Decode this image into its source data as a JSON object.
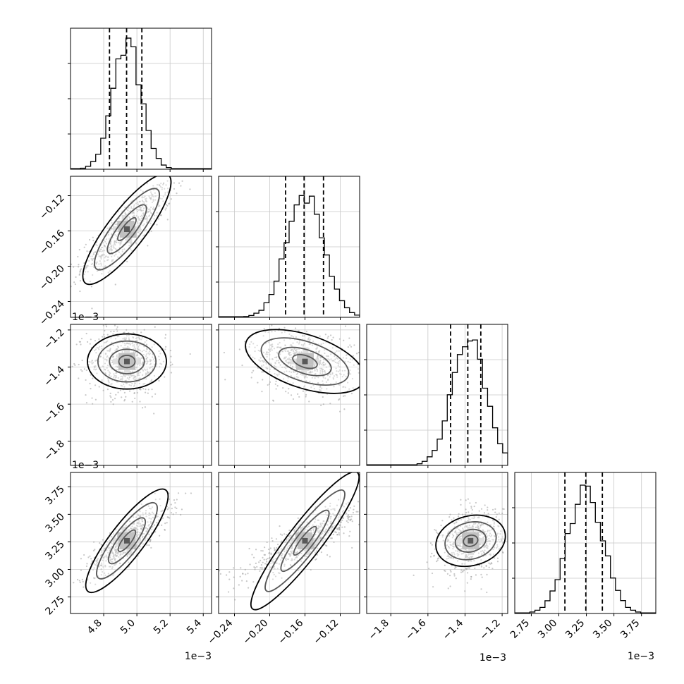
{
  "figure": {
    "type": "corner plot"
  },
  "colors": {
    "histogram": "#000000",
    "scatter": "#9a9a9a",
    "contour": "#000000",
    "density_scale": [
      "#f2f2f2",
      "#d0d0d0",
      "#a0a0a0",
      "#6a6a6a",
      "#000000"
    ],
    "grid": "#c8c8c8"
  },
  "chart_data": {
    "type": "corner",
    "parameters": [
      {
        "id": "p0",
        "range": [
          4.6,
          5.45
        ],
        "ticks": [
          4.8,
          5.0,
          5.2,
          5.4
        ],
        "tick_labels": [
          "4.8",
          "5.0",
          "5.2",
          "5.4"
        ],
        "offset_label": "1e−3"
      },
      {
        "id": "p1",
        "range": [
          -0.258,
          -0.098
        ],
        "ticks": [
          -0.24,
          -0.2,
          -0.16,
          -0.12
        ],
        "tick_labels": [
          "−0.24",
          "−0.20",
          "−0.16",
          "−0.12"
        ],
        "offset_label": ""
      },
      {
        "id": "p2",
        "range": [
          -1.93,
          -1.17
        ],
        "ticks": [
          -1.8,
          -1.6,
          -1.4,
          -1.2
        ],
        "tick_labels": [
          "−1.8",
          "−1.6",
          "−1.4",
          "−1.2"
        ],
        "offset_label": "1e−3"
      },
      {
        "id": "p3",
        "range": [
          2.6,
          3.88
        ],
        "ticks": [
          2.75,
          3.0,
          3.25,
          3.5,
          3.75
        ],
        "tick_labels": [
          "2.75",
          "3.00",
          "3.25",
          "3.50",
          "3.75"
        ],
        "offset_label": "1e−3"
      }
    ],
    "histograms": [
      {
        "param": "p0",
        "quantiles": [
          4.835,
          4.938,
          5.03
        ],
        "mean": 4.94,
        "sd": 0.085,
        "peak_fraction": 0.9
      },
      {
        "param": "p1",
        "quantiles": [
          -0.182,
          -0.161,
          -0.139
        ],
        "mean": -0.16,
        "sd": 0.021,
        "peak_fraction": 0.86
      },
      {
        "param": "p2",
        "quantiles": [
          -1.478,
          -1.385,
          -1.315
        ],
        "mean": -1.38,
        "sd": 0.09,
        "peak_fraction": 0.9
      },
      {
        "param": "p3",
        "quantiles": [
          3.055,
          3.245,
          3.395
        ],
        "mean": 3.24,
        "sd": 0.16,
        "peak_fraction": 0.88
      }
    ],
    "pairs": [
      {
        "x": "p0",
        "y": "p1",
        "center": [
          4.94,
          -0.158
        ],
        "spread": [
          0.16,
          0.03
        ],
        "rho": 0.85
      },
      {
        "x": "p0",
        "y": "p2",
        "center": [
          4.94,
          -1.37
        ],
        "spread": [
          0.14,
          0.11
        ],
        "rho": 0.0
      },
      {
        "x": "p1",
        "y": "p2",
        "center": [
          -0.16,
          -1.37
        ],
        "spread": [
          0.036,
          0.11
        ],
        "rho": -0.25
      },
      {
        "x": "p0",
        "y": "p3",
        "center": [
          4.94,
          3.26
        ],
        "spread": [
          0.15,
          0.19
        ],
        "rho": 0.85
      },
      {
        "x": "p1",
        "y": "p3",
        "center": [
          -0.16,
          3.26
        ],
        "spread": [
          0.038,
          0.19
        ],
        "rho": 0.85
      },
      {
        "x": "p2",
        "y": "p3",
        "center": [
          -1.37,
          3.26
        ],
        "spread": [
          0.1,
          0.17
        ],
        "rho": 0.2
      }
    ],
    "grid": true
  }
}
